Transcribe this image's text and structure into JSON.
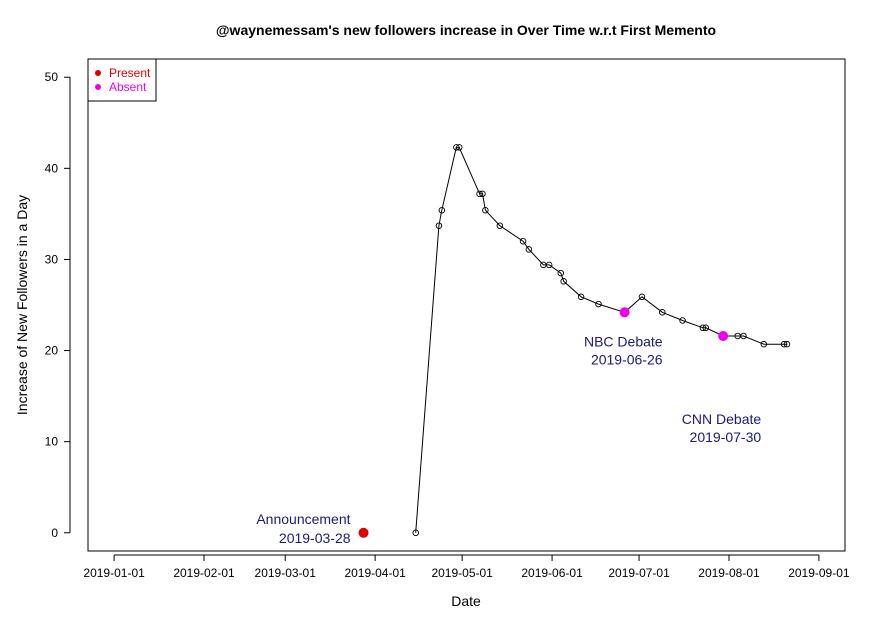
{
  "chart_data": {
    "type": "scatter",
    "title": "@waynemessam's new followers increase in Over Time w.r.t First Memento",
    "xlabel": "Date",
    "ylabel": "Increase of New Followers in a Day",
    "x_ticks": [
      "2019-01-01",
      "2019-02-01",
      "2019-03-01",
      "2019-04-01",
      "2019-05-01",
      "2019-06-01",
      "2019-07-01",
      "2019-08-01",
      "2019-09-01"
    ],
    "y_ticks": [
      0,
      10,
      20,
      30,
      40,
      50
    ],
    "xlim": [
      "2018-12-23",
      "2019-09-10"
    ],
    "ylim": [
      -2,
      52
    ],
    "grid": false,
    "legend_position": "top-left",
    "legend": [
      {
        "label": "Present",
        "color": "#dd0000"
      },
      {
        "label": "Absent",
        "color": "#ee00ee"
      }
    ],
    "series": [
      {
        "line": true,
        "points": [
          {
            "x": "2019-04-15",
            "y": 0
          },
          {
            "x": "2019-04-23",
            "y": 33.7
          },
          {
            "x": "2019-04-24",
            "y": 35.4
          },
          {
            "x": "2019-04-29",
            "y": 42.3
          },
          {
            "x": "2019-04-30",
            "y": 42.3
          },
          {
            "x": "2019-05-07",
            "y": 37.2
          },
          {
            "x": "2019-05-08",
            "y": 37.2
          },
          {
            "x": "2019-05-09",
            "y": 35.4
          },
          {
            "x": "2019-05-14",
            "y": 33.7
          },
          {
            "x": "2019-05-22",
            "y": 32.0
          },
          {
            "x": "2019-05-24",
            "y": 31.1
          },
          {
            "x": "2019-05-29",
            "y": 29.4
          },
          {
            "x": "2019-05-31",
            "y": 29.4
          },
          {
            "x": "2019-06-04",
            "y": 28.5
          },
          {
            "x": "2019-06-05",
            "y": 27.6
          },
          {
            "x": "2019-06-11",
            "y": 25.9
          },
          {
            "x": "2019-06-17",
            "y": 25.1
          },
          {
            "x": "2019-06-26",
            "y": 24.2
          },
          {
            "x": "2019-07-02",
            "y": 25.9
          },
          {
            "x": "2019-07-09",
            "y": 24.2
          },
          {
            "x": "2019-07-16",
            "y": 23.3
          },
          {
            "x": "2019-07-23",
            "y": 22.5
          },
          {
            "x": "2019-07-24",
            "y": 22.5
          },
          {
            "x": "2019-07-30",
            "y": 21.6
          },
          {
            "x": "2019-08-04",
            "y": 21.6
          },
          {
            "x": "2019-08-06",
            "y": 21.6
          },
          {
            "x": "2019-08-13",
            "y": 20.7
          },
          {
            "x": "2019-08-20",
            "y": 20.7
          },
          {
            "x": "2019-08-21",
            "y": 20.7
          }
        ]
      },
      {
        "name": "Present",
        "color": "#dd0000",
        "points": [
          {
            "x": "2019-03-28",
            "y": 0
          }
        ]
      },
      {
        "name": "Absent",
        "color": "#ee00ee",
        "points": [
          {
            "x": "2019-06-26",
            "y": 24.2
          },
          {
            "x": "2019-07-30",
            "y": 21.6
          }
        ]
      }
    ],
    "annotations": [
      {
        "line1": "Announcement",
        "line2": "2019-03-28",
        "x": "2019-03-28",
        "y": 0
      },
      {
        "line1": "NBC Debate",
        "line2": "2019-06-26",
        "x": "2019-06-26",
        "y": 24.2
      },
      {
        "line1": "CNN Debate",
        "line2": "2019-07-30",
        "x": "2019-07-30",
        "y": 21.6
      }
    ],
    "annotation_color": "#1a1a7a"
  }
}
